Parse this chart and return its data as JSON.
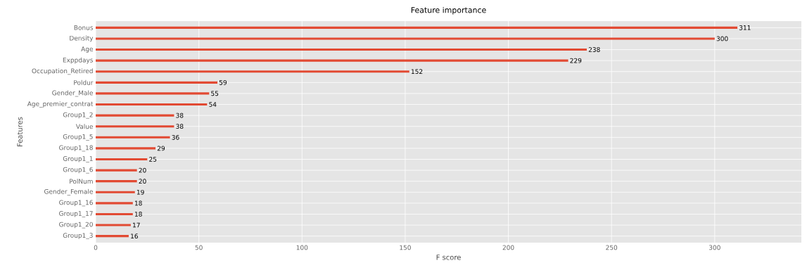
{
  "chart_data": {
    "type": "bar",
    "orientation": "horizontal",
    "title": "Feature importance",
    "xlabel": "F score",
    "ylabel": "Features",
    "categories": [
      "Bonus",
      "Density",
      "Age",
      "Exppdays",
      "Occupation_Retired",
      "Poldur",
      "Gender_Male",
      "Age_premier_contrat",
      "Group1_2",
      "Value",
      "Group1_5",
      "Group1_18",
      "Group1_1",
      "Group1_6",
      "PolNum",
      "Gender_Female",
      "Group1_16",
      "Group1_17",
      "Group1_20",
      "Group1_3"
    ],
    "values": [
      311,
      300,
      238,
      229,
      152,
      59,
      55,
      54,
      38,
      38,
      36,
      29,
      25,
      20,
      20,
      19,
      18,
      18,
      17,
      16
    ],
    "color": "#e24a33",
    "data_labels": true,
    "grid": true,
    "xlim": [
      0,
      342
    ],
    "xticks": [
      0,
      50,
      100,
      150,
      200,
      250,
      300
    ]
  }
}
